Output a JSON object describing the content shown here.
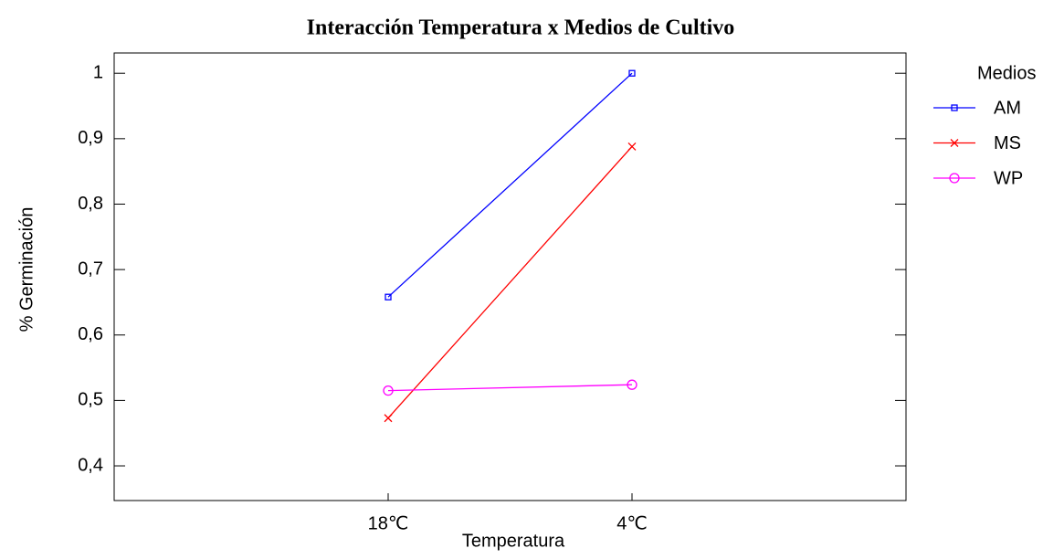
{
  "chart_data": {
    "type": "line",
    "title": "Interacción Temperatura x Medios de Cultivo",
    "xlabel": "Temperatura",
    "ylabel": "% Germinación",
    "legend_title": "Medios",
    "legend": "right",
    "categories": [
      "18℃",
      "4℃"
    ],
    "series": [
      {
        "name": "AM",
        "color": "#0000ff",
        "marker": "square",
        "values": [
          0.658,
          1.0
        ]
      },
      {
        "name": "MS",
        "color": "#ff0000",
        "marker": "x",
        "values": [
          0.473,
          0.888
        ]
      },
      {
        "name": "WP",
        "color": "#ff00ff",
        "marker": "circle",
        "values": [
          0.515,
          0.524
        ]
      }
    ],
    "ylim": [
      0.347,
      1.031
    ],
    "yticks": [
      {
        "value": 0.4,
        "label": "0,4"
      },
      {
        "value": 0.5,
        "label": "0,5"
      },
      {
        "value": 0.6,
        "label": "0,6"
      },
      {
        "value": 0.7,
        "label": "0,7"
      },
      {
        "value": 0.8,
        "label": "0,8"
      },
      {
        "value": 0.9,
        "label": "0,9"
      },
      1
    ]
  }
}
